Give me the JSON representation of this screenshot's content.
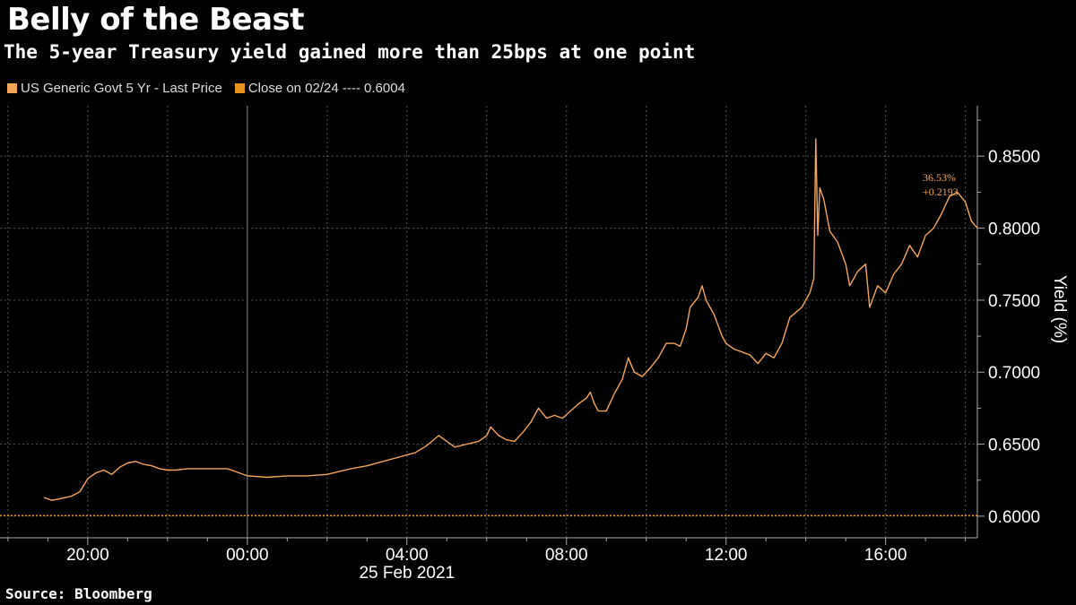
{
  "header": {
    "title": "Belly of the Beast",
    "subtitle": "The 5-year Treasury yield gained more than 25bps at one point"
  },
  "legend": {
    "series_label": "US Generic Govt 5 Yr - Last Price",
    "close_label": "Close on 02/24 ---- 0.6004"
  },
  "footer": {
    "source": "Source: Bloomberg"
  },
  "colors": {
    "series": "#f5a55a",
    "close_line": "#e8901e",
    "grid": "#555555",
    "background": "#000000"
  },
  "chart_data": {
    "type": "line",
    "title": "Belly of the Beast",
    "subtitle": "The 5-year Treasury yield gained more than 25bps at one point",
    "ylabel": "Yield (%)",
    "xlabel": "25 Feb 2021",
    "ylim": [
      0.585,
      0.885
    ],
    "xlim": [
      17.8,
      42.3
    ],
    "x_unit": "hours from 00:00 on 24 Feb 2021 (axis times shown on ticks)",
    "x_ticks": [
      {
        "x": 20,
        "label": "20:00"
      },
      {
        "x": 24,
        "label": "00:00"
      },
      {
        "x": 28,
        "label": "04:00"
      },
      {
        "x": 32,
        "label": "08:00"
      },
      {
        "x": 36,
        "label": "12:00"
      },
      {
        "x": 40,
        "label": "16:00"
      }
    ],
    "y_ticks": [
      {
        "y": 0.6,
        "label": "0.6000"
      },
      {
        "y": 0.65,
        "label": "0.6500"
      },
      {
        "y": 0.7,
        "label": "0.7000"
      },
      {
        "y": 0.75,
        "label": "0.7500"
      },
      {
        "y": 0.8,
        "label": "0.8000"
      },
      {
        "y": 0.85,
        "label": "0.8500"
      }
    ],
    "grid": true,
    "reference_line": {
      "label": "Close on 02/24",
      "y": 0.6004
    },
    "annotation": {
      "pct": "36.53%",
      "change": "+0.2193",
      "y": 0.8197
    },
    "series": [
      {
        "name": "US Generic Govt 5 Yr - Last Price",
        "points": [
          [
            18.9,
            0.613
          ],
          [
            19.1,
            0.611
          ],
          [
            19.3,
            0.612
          ],
          [
            19.6,
            0.614
          ],
          [
            19.8,
            0.617
          ],
          [
            20.0,
            0.626
          ],
          [
            20.2,
            0.63
          ],
          [
            20.4,
            0.632
          ],
          [
            20.6,
            0.629
          ],
          [
            20.8,
            0.634
          ],
          [
            21.0,
            0.637
          ],
          [
            21.2,
            0.638
          ],
          [
            21.4,
            0.636
          ],
          [
            21.6,
            0.635
          ],
          [
            21.8,
            0.633
          ],
          [
            22.0,
            0.632
          ],
          [
            22.2,
            0.632
          ],
          [
            22.5,
            0.633
          ],
          [
            23.0,
            0.633
          ],
          [
            23.5,
            0.633
          ],
          [
            24.0,
            0.628
          ],
          [
            24.5,
            0.627
          ],
          [
            25.0,
            0.628
          ],
          [
            25.5,
            0.628
          ],
          [
            26.0,
            0.629
          ],
          [
            26.3,
            0.631
          ],
          [
            26.6,
            0.633
          ],
          [
            27.0,
            0.635
          ],
          [
            27.4,
            0.638
          ],
          [
            27.8,
            0.641
          ],
          [
            28.2,
            0.644
          ],
          [
            28.5,
            0.649
          ],
          [
            28.8,
            0.656
          ],
          [
            29.0,
            0.652
          ],
          [
            29.2,
            0.648
          ],
          [
            29.5,
            0.65
          ],
          [
            29.8,
            0.652
          ],
          [
            30.0,
            0.656
          ],
          [
            30.1,
            0.662
          ],
          [
            30.3,
            0.656
          ],
          [
            30.5,
            0.653
          ],
          [
            30.7,
            0.652
          ],
          [
            30.9,
            0.658
          ],
          [
            31.1,
            0.665
          ],
          [
            31.3,
            0.675
          ],
          [
            31.5,
            0.668
          ],
          [
            31.7,
            0.67
          ],
          [
            31.9,
            0.668
          ],
          [
            32.1,
            0.673
          ],
          [
            32.3,
            0.678
          ],
          [
            32.5,
            0.682
          ],
          [
            32.6,
            0.686
          ],
          [
            32.7,
            0.678
          ],
          [
            32.8,
            0.673
          ],
          [
            33.0,
            0.673
          ],
          [
            33.2,
            0.685
          ],
          [
            33.4,
            0.695
          ],
          [
            33.55,
            0.71
          ],
          [
            33.7,
            0.7
          ],
          [
            33.9,
            0.697
          ],
          [
            34.1,
            0.703
          ],
          [
            34.3,
            0.71
          ],
          [
            34.5,
            0.72
          ],
          [
            34.7,
            0.72
          ],
          [
            34.85,
            0.718
          ],
          [
            35.0,
            0.73
          ],
          [
            35.1,
            0.745
          ],
          [
            35.3,
            0.752
          ],
          [
            35.4,
            0.76
          ],
          [
            35.5,
            0.75
          ],
          [
            35.7,
            0.74
          ],
          [
            35.9,
            0.725
          ],
          [
            36.0,
            0.72
          ],
          [
            36.2,
            0.716
          ],
          [
            36.4,
            0.714
          ],
          [
            36.6,
            0.712
          ],
          [
            36.8,
            0.706
          ],
          [
            37.0,
            0.713
          ],
          [
            37.2,
            0.71
          ],
          [
            37.4,
            0.72
          ],
          [
            37.6,
            0.738
          ],
          [
            37.9,
            0.745
          ],
          [
            38.1,
            0.755
          ],
          [
            38.2,
            0.765
          ],
          [
            38.25,
            0.862
          ],
          [
            38.3,
            0.795
          ],
          [
            38.35,
            0.828
          ],
          [
            38.45,
            0.82
          ],
          [
            38.6,
            0.798
          ],
          [
            38.8,
            0.79
          ],
          [
            39.0,
            0.775
          ],
          [
            39.1,
            0.76
          ],
          [
            39.3,
            0.77
          ],
          [
            39.5,
            0.775
          ],
          [
            39.6,
            0.745
          ],
          [
            39.8,
            0.76
          ],
          [
            40.0,
            0.755
          ],
          [
            40.2,
            0.768
          ],
          [
            40.4,
            0.775
          ],
          [
            40.6,
            0.788
          ],
          [
            40.8,
            0.78
          ],
          [
            41.0,
            0.795
          ],
          [
            41.2,
            0.8
          ],
          [
            41.4,
            0.81
          ],
          [
            41.6,
            0.822
          ],
          [
            41.8,
            0.825
          ],
          [
            42.0,
            0.818
          ],
          [
            42.15,
            0.805
          ],
          [
            42.3,
            0.8
          ]
        ]
      }
    ]
  }
}
